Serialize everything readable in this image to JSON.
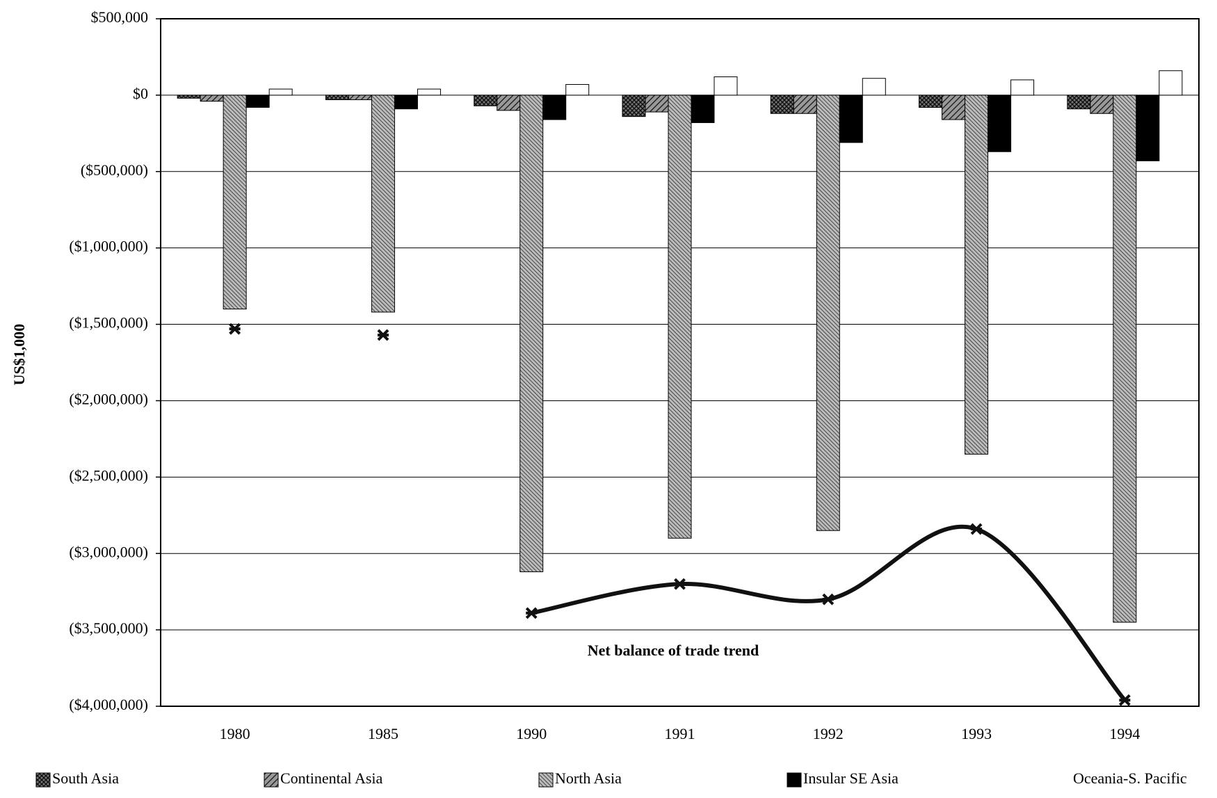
{
  "chart_data": {
    "type": "bar",
    "y_label": "US$1,000",
    "annotation": "Net balance of trade trend",
    "categories": [
      "1980",
      "1985",
      "1990",
      "1991",
      "1992",
      "1993",
      "1994"
    ],
    "series": [
      {
        "name": "South Asia",
        "color": "#333333",
        "pattern": "crosshatch",
        "values": [
          -20000,
          -30000,
          -70000,
          -140000,
          -120000,
          -80000,
          -90000
        ]
      },
      {
        "name": "Continental Asia",
        "color": "#444444",
        "pattern": "hatch",
        "values": [
          -40000,
          -30000,
          -100000,
          -110000,
          -120000,
          -160000,
          -120000
        ]
      },
      {
        "name": "North Asia",
        "color": "#333333",
        "pattern": "finehatch",
        "values": [
          -1400000,
          -1420000,
          -3120000,
          -2900000,
          -2850000,
          -2350000,
          -3450000
        ]
      },
      {
        "name": "Insular SE Asia",
        "color": "#000000",
        "pattern": "solid",
        "values": [
          -80000,
          -90000,
          -160000,
          -180000,
          -310000,
          -370000,
          -430000
        ]
      },
      {
        "name": "Oceania-S. Pacific",
        "color": "#ffffff",
        "pattern": "solid",
        "values": [
          40000,
          40000,
          70000,
          120000,
          110000,
          100000,
          160000
        ]
      }
    ],
    "trend": {
      "type": "line",
      "color": "#111111",
      "smooth": true,
      "line_from_index": 2,
      "values": [
        -1530000,
        -1570000,
        -3390000,
        -3200000,
        -3300000,
        -2840000,
        -3960000
      ]
    },
    "ylim": [
      -4000000,
      500000
    ],
    "yticks": [
      {
        "value": 500000,
        "label": "$500,000"
      },
      {
        "value": 0,
        "label": "$0"
      },
      {
        "value": -500000,
        "label": "($500,000)"
      },
      {
        "value": -1000000,
        "label": "($1,000,000)"
      },
      {
        "value": -1500000,
        "label": "($1,500,000)"
      },
      {
        "value": -2000000,
        "label": "($2,000,000)"
      },
      {
        "value": -2500000,
        "label": "($2,500,000)"
      },
      {
        "value": -3000000,
        "label": "($3,000,000)"
      },
      {
        "value": -3500000,
        "label": "($3,500,000)"
      },
      {
        "value": -4000000,
        "label": "($4,000,000)"
      }
    ],
    "grid": true
  }
}
